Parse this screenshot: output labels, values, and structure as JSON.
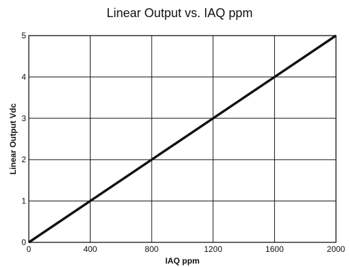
{
  "chart_data": {
    "type": "line",
    "title": "Linear Output vs. IAQ ppm",
    "xlabel": "IAQ ppm",
    "ylabel": "Linear Output Vdc",
    "xlim": [
      0,
      2000
    ],
    "ylim": [
      0,
      5
    ],
    "x_ticks": [
      "0",
      "400",
      "800",
      "1200",
      "1600",
      "2000"
    ],
    "y_ticks": [
      "0",
      "1",
      "2",
      "3",
      "4",
      "5"
    ],
    "grid": true,
    "series": [
      {
        "x": [
          0,
          400,
          800,
          1200,
          1600,
          2000
        ],
        "y": [
          0,
          1,
          2,
          3,
          4,
          5
        ]
      }
    ],
    "colors": {
      "line": "#111111",
      "grid": "#111111",
      "frame": "#111111"
    }
  }
}
